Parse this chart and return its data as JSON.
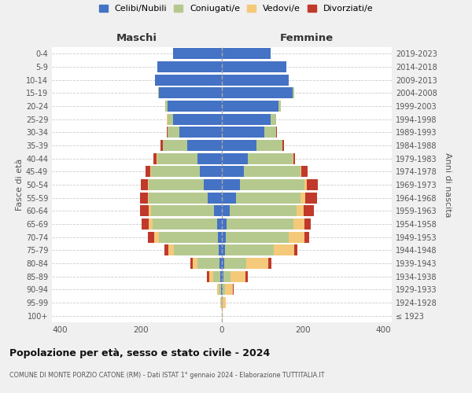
{
  "age_groups": [
    "100+",
    "95-99",
    "90-94",
    "85-89",
    "80-84",
    "75-79",
    "70-74",
    "65-69",
    "60-64",
    "55-59",
    "50-54",
    "45-49",
    "40-44",
    "35-39",
    "30-34",
    "25-29",
    "20-24",
    "15-19",
    "10-14",
    "5-9",
    "0-4"
  ],
  "birth_years": [
    "≤ 1923",
    "1924-1928",
    "1929-1933",
    "1934-1938",
    "1939-1943",
    "1944-1948",
    "1949-1953",
    "1954-1958",
    "1959-1963",
    "1964-1968",
    "1969-1973",
    "1974-1978",
    "1979-1983",
    "1984-1988",
    "1989-1993",
    "1994-1998",
    "1999-2003",
    "2004-2008",
    "2009-2013",
    "2014-2018",
    "2019-2023"
  ],
  "maschi_celibi": [
    0,
    0,
    2,
    3,
    5,
    8,
    10,
    12,
    20,
    35,
    45,
    55,
    60,
    85,
    105,
    120,
    135,
    155,
    165,
    160,
    120
  ],
  "maschi_coniugati": [
    0,
    2,
    5,
    18,
    55,
    110,
    145,
    160,
    155,
    145,
    135,
    120,
    100,
    60,
    30,
    15,
    5,
    3,
    0,
    0,
    0
  ],
  "maschi_vedovi": [
    0,
    2,
    5,
    10,
    12,
    15,
    12,
    8,
    5,
    3,
    2,
    1,
    1,
    1,
    0,
    2,
    0,
    0,
    0,
    0,
    0
  ],
  "maschi_divorziati": [
    0,
    0,
    0,
    5,
    5,
    8,
    15,
    18,
    22,
    20,
    18,
    12,
    8,
    5,
    2,
    0,
    0,
    0,
    0,
    0,
    0
  ],
  "femmine_celibi": [
    0,
    0,
    2,
    3,
    5,
    8,
    10,
    12,
    20,
    35,
    45,
    55,
    65,
    85,
    105,
    120,
    140,
    175,
    165,
    160,
    120
  ],
  "femmine_coniugati": [
    0,
    2,
    5,
    18,
    55,
    120,
    155,
    165,
    165,
    160,
    160,
    140,
    110,
    65,
    30,
    15,
    5,
    3,
    0,
    0,
    0
  ],
  "femmine_vedovi": [
    2,
    8,
    20,
    38,
    55,
    50,
    40,
    28,
    18,
    12,
    5,
    2,
    1,
    0,
    0,
    0,
    0,
    0,
    0,
    0,
    0
  ],
  "femmine_divorziati": [
    0,
    0,
    2,
    5,
    8,
    8,
    10,
    15,
    25,
    28,
    28,
    15,
    5,
    3,
    1,
    0,
    0,
    0,
    0,
    0,
    0
  ],
  "colors": {
    "celibi": "#4472C4",
    "coniugati": "#b5c98e",
    "vedovi": "#f5c97a",
    "divorziati": "#c0392b"
  },
  "title": "Popolazione per età, sesso e stato civile - 2024",
  "subtitle": "COMUNE DI MONTE PORZIO CATONE (RM) - Dati ISTAT 1° gennaio 2024 - Elaborazione TUTTITALIA.IT",
  "xlabel_left": "Maschi",
  "xlabel_right": "Femmine",
  "ylabel_left": "Fasce di età",
  "ylabel_right": "Anni di nascita",
  "xlim": 420,
  "legend_labels": [
    "Celibi/Nubili",
    "Coniugati/e",
    "Vedovi/e",
    "Divorziati/e"
  ],
  "bg_color": "#f0f0f0",
  "plot_bg_color": "#ffffff"
}
